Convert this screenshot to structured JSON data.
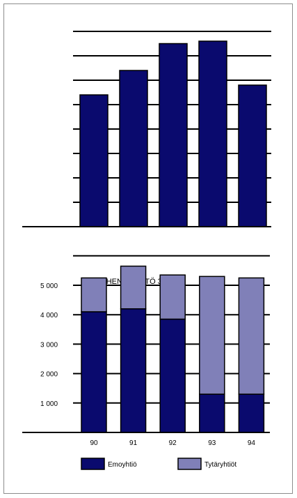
{
  "chart_data": [
    {
      "type": "bar",
      "title": "",
      "categories": [
        "",
        "",
        "",
        "",
        ""
      ],
      "values": [
        5.4,
        6.4,
        7.5,
        7.6,
        5.8
      ],
      "ylim": [
        0,
        8
      ],
      "grid": true,
      "colors": {
        "bar": "#0a0a6e"
      }
    },
    {
      "type": "bar",
      "stacked": true,
      "title": "HENKILÖSTÖ 31.12.",
      "categories": [
        "90",
        "91",
        "92",
        "93",
        "94"
      ],
      "series": [
        {
          "name": "Emoyhtiö",
          "values": [
            4100,
            4200,
            3850,
            1300,
            1300
          ]
        },
        {
          "name": "Tytäryhtiöt",
          "values": [
            1150,
            1450,
            1500,
            4000,
            3950
          ]
        }
      ],
      "yticks": [
        "1 000",
        "2 000",
        "3 000",
        "4 000",
        "5 000"
      ],
      "ylim": [
        0,
        6000
      ],
      "grid": true,
      "legend": "bottom",
      "colors": {
        "Emoyhtiö": "#0a0a6e",
        "Tytäryhtiöt": "#8080b8"
      }
    }
  ]
}
